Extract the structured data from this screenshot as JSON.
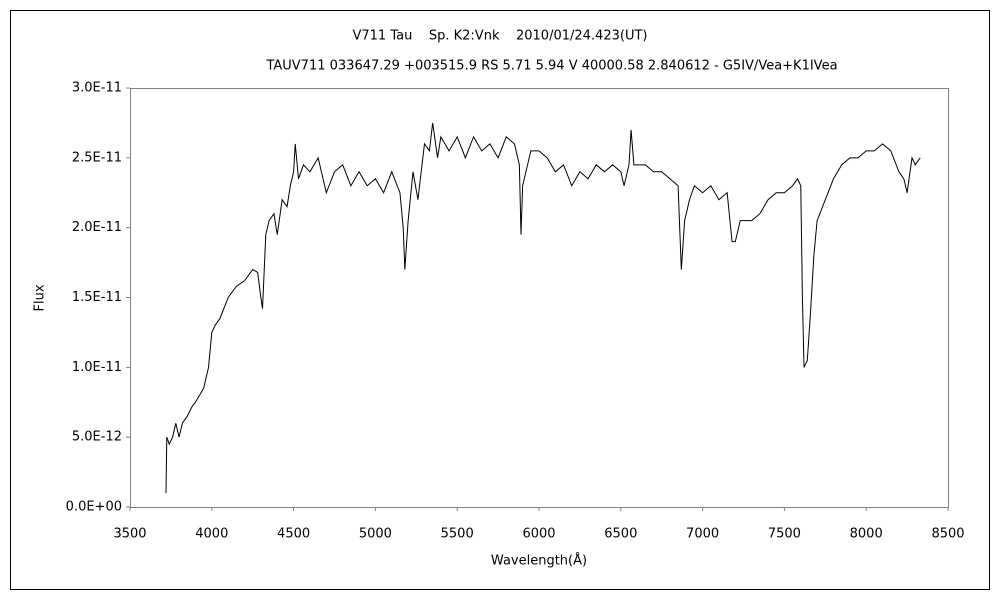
{
  "chart_data": {
    "type": "line",
    "title": "V711 Tau    Sp. K2:Vnk    2010/01/24.423(UT)",
    "subtitle": "TAUV711 033647.29 +003515.9 RS 5.71 5.94 V 40000.58 2.840612 - G5IV/Vea+K1IVea",
    "x_label": "Wavelength(Å)",
    "y_label": "Flux",
    "color": "#000000",
    "grid": false,
    "xlim": [
      3500,
      8500
    ],
    "xticks": [
      3500,
      4000,
      4500,
      5000,
      5500,
      6000,
      6500,
      7000,
      7500,
      8000,
      8500
    ],
    "ylim": [
      0,
      3e-11
    ],
    "yticks": [
      {
        "value": 0,
        "label": "0.0E+00"
      },
      {
        "value": 5e-12,
        "label": "5.0E-12"
      },
      {
        "value": 1e-11,
        "label": "1.0E-11"
      },
      {
        "value": 1.5e-11,
        "label": "1.5E-11"
      },
      {
        "value": 2e-11,
        "label": "2.0E-11"
      },
      {
        "value": 2.5e-11,
        "label": "2.5E-11"
      },
      {
        "value": 3e-11,
        "label": "3.0E-11"
      }
    ],
    "x": [
      3720,
      3725,
      3740,
      3760,
      3780,
      3800,
      3820,
      3850,
      3880,
      3900,
      3950,
      3980,
      4000,
      4020,
      4050,
      4100,
      4150,
      4200,
      4250,
      4280,
      4300,
      4310,
      4330,
      4350,
      4380,
      4400,
      4430,
      4460,
      4480,
      4500,
      4510,
      4530,
      4560,
      4600,
      4650,
      4700,
      4750,
      4800,
      4850,
      4900,
      4950,
      5000,
      5050,
      5100,
      5150,
      5170,
      5180,
      5200,
      5230,
      5260,
      5300,
      5330,
      5350,
      5380,
      5400,
      5450,
      5500,
      5550,
      5600,
      5650,
      5700,
      5750,
      5800,
      5850,
      5880,
      5890,
      5900,
      5950,
      6000,
      6050,
      6100,
      6150,
      6200,
      6250,
      6300,
      6350,
      6400,
      6450,
      6500,
      6520,
      6550,
      6563,
      6580,
      6650,
      6700,
      6750,
      6800,
      6850,
      6870,
      6890,
      6920,
      6950,
      7000,
      7050,
      7100,
      7150,
      7180,
      7200,
      7230,
      7300,
      7350,
      7400,
      7450,
      7500,
      7550,
      7580,
      7600,
      7610,
      7620,
      7640,
      7660,
      7680,
      7700,
      7750,
      7800,
      7850,
      7900,
      7950,
      8000,
      8050,
      8100,
      8150,
      8200,
      8230,
      8250,
      8280,
      8300,
      8330
    ],
    "values": [
      1e-12,
      5e-12,
      4.5e-12,
      5e-12,
      6e-12,
      5e-12,
      6e-12,
      6.5e-12,
      7.2e-12,
      7.5e-12,
      8.5e-12,
      1e-11,
      1.25e-11,
      1.3e-11,
      1.35e-11,
      1.5e-11,
      1.58e-11,
      1.62e-11,
      1.7e-11,
      1.68e-11,
      1.5e-11,
      1.42e-11,
      1.95e-11,
      2.05e-11,
      2.1e-11,
      1.95e-11,
      2.2e-11,
      2.15e-11,
      2.3e-11,
      2.4e-11,
      2.6e-11,
      2.35e-11,
      2.45e-11,
      2.4e-11,
      2.5e-11,
      2.25e-11,
      2.4e-11,
      2.45e-11,
      2.3e-11,
      2.4e-11,
      2.3e-11,
      2.35e-11,
      2.25e-11,
      2.4e-11,
      2.25e-11,
      2e-11,
      1.7e-11,
      2.05e-11,
      2.4e-11,
      2.2e-11,
      2.6e-11,
      2.55e-11,
      2.75e-11,
      2.5e-11,
      2.65e-11,
      2.55e-11,
      2.65e-11,
      2.5e-11,
      2.65e-11,
      2.55e-11,
      2.6e-11,
      2.5e-11,
      2.65e-11,
      2.6e-11,
      2.45e-11,
      1.95e-11,
      2.3e-11,
      2.55e-11,
      2.55e-11,
      2.5e-11,
      2.4e-11,
      2.45e-11,
      2.3e-11,
      2.4e-11,
      2.35e-11,
      2.45e-11,
      2.4e-11,
      2.45e-11,
      2.4e-11,
      2.3e-11,
      2.45e-11,
      2.7e-11,
      2.45e-11,
      2.45e-11,
      2.4e-11,
      2.4e-11,
      2.35e-11,
      2.3e-11,
      1.7e-11,
      2.05e-11,
      2.2e-11,
      2.3e-11,
      2.25e-11,
      2.3e-11,
      2.2e-11,
      2.25e-11,
      1.9e-11,
      1.9e-11,
      2.05e-11,
      2.05e-11,
      2.1e-11,
      2.2e-11,
      2.25e-11,
      2.25e-11,
      2.3e-11,
      2.35e-11,
      2.3e-11,
      1.5e-11,
      1e-11,
      1.05e-11,
      1.4e-11,
      1.8e-11,
      2.05e-11,
      2.2e-11,
      2.35e-11,
      2.45e-11,
      2.5e-11,
      2.5e-11,
      2.55e-11,
      2.55e-11,
      2.6e-11,
      2.55e-11,
      2.4e-11,
      2.35e-11,
      2.25e-11,
      2.5e-11,
      2.45e-11,
      2.5e-11
    ]
  }
}
